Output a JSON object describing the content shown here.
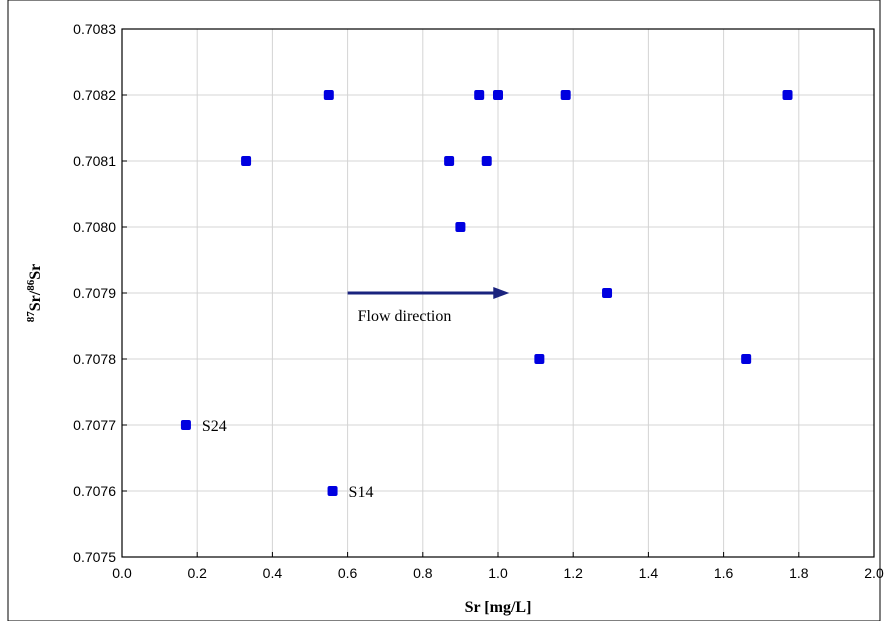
{
  "chart_data": {
    "type": "scatter",
    "xlabel": "Sr [mg/L]",
    "ylabel": {
      "iso_a": "87",
      "el_a": "Sr/",
      "iso_b": "86",
      "el_b": "Sr"
    },
    "xlim": [
      0.0,
      2.0
    ],
    "ylim": [
      0.7075,
      0.7083
    ],
    "x_ticks": [
      "0.0",
      "0.2",
      "0.4",
      "0.6",
      "0.8",
      "1.0",
      "1.2",
      "1.4",
      "1.6",
      "1.8",
      "2.0"
    ],
    "y_ticks": [
      "0.7075",
      "0.7076",
      "0.7077",
      "0.7078",
      "0.7079",
      "0.7080",
      "0.7081",
      "0.7082",
      "0.7083"
    ],
    "grid": true,
    "marker_color": "#0000e0",
    "points": [
      {
        "x": 0.55,
        "y": 0.7082
      },
      {
        "x": 0.95,
        "y": 0.7082
      },
      {
        "x": 1.0,
        "y": 0.7082
      },
      {
        "x": 1.18,
        "y": 0.7082
      },
      {
        "x": 1.77,
        "y": 0.7082
      },
      {
        "x": 0.33,
        "y": 0.7081
      },
      {
        "x": 0.87,
        "y": 0.7081
      },
      {
        "x": 0.97,
        "y": 0.7081
      },
      {
        "x": 0.9,
        "y": 0.708
      },
      {
        "x": 1.29,
        "y": 0.7079
      },
      {
        "x": 1.11,
        "y": 0.7078
      },
      {
        "x": 1.66,
        "y": 0.7078
      },
      {
        "x": 0.17,
        "y": 0.7077,
        "label": "S24"
      },
      {
        "x": 0.56,
        "y": 0.7076,
        "label": "S14"
      }
    ],
    "annotation": {
      "text": "Flow direction",
      "arrow_from": {
        "x": 0.6,
        "y": 0.7079
      },
      "arrow_to": {
        "x": 1.03,
        "y": 0.7079
      }
    }
  }
}
